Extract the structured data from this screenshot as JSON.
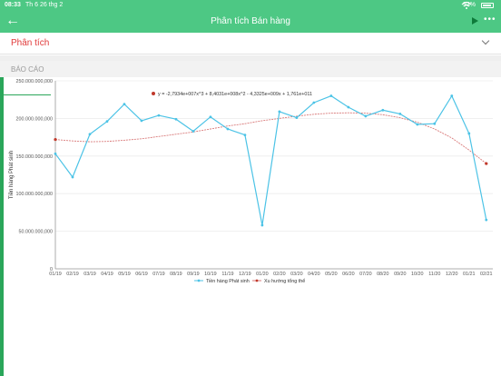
{
  "status_bar": {
    "time": "08:33",
    "date": "Th 6 26 thg 2",
    "battery": "93%"
  },
  "app_bar": {
    "title": "Phân tích Bán hàng"
  },
  "section": {
    "label": "Phân tích"
  },
  "report": {
    "label": "BÁO CÁO"
  },
  "colors": {
    "header": "#4dc884",
    "accent": "#2aa65a",
    "series": "#4cc3e6",
    "trend": "#d97a7a",
    "label_red": "#e03a3a"
  },
  "chart_data": {
    "type": "line",
    "ylabel": "Tiền hàng Phát sinh",
    "xlabel": "",
    "ylim": [
      0,
      250000000
    ],
    "y_ticks": [
      "0",
      "50.000.000,000",
      "100.000.000,000",
      "150.000.000,000",
      "200.000.000,000",
      "250.000.000,000"
    ],
    "categories": [
      "01/19",
      "02/19",
      "03/19",
      "04/19",
      "05/19",
      "06/19",
      "07/19",
      "08/19",
      "09/19",
      "10/19",
      "11/19",
      "12/19",
      "01/20",
      "02/20",
      "03/20",
      "04/20",
      "05/20",
      "06/20",
      "07/20",
      "08/20",
      "09/20",
      "10/20",
      "11/20",
      "12/20",
      "01/21",
      "02/21"
    ],
    "series": [
      {
        "name": "Tiền hàng Phát sinh",
        "values": [
          153000000,
          122000000,
          179000000,
          196000000,
          219000000,
          197000000,
          204000000,
          199000000,
          183000000,
          202000000,
          186000000,
          178000000,
          58000000,
          209000000,
          201000000,
          221000000,
          230000000,
          215000000,
          203000000,
          211000000,
          206000000,
          192000000,
          193000000,
          230000000,
          180000000,
          65000000
        ]
      },
      {
        "name": "Xu hướng tổng thể",
        "values": [
          172000000,
          170000000,
          169000000,
          169500000,
          171000000,
          173000000,
          176000000,
          179000000,
          182000000,
          186000000,
          190000000,
          193000000,
          197000000,
          200000000,
          203000000,
          205500000,
          207000000,
          207500000,
          207000000,
          205000000,
          201000000,
          195000000,
          186000000,
          174000000,
          158000000,
          140000000
        ]
      }
    ],
    "annotation": "y = -2,7934e+007x^3 + 8,4031e+008x^2 - 4,3325e+009x + 1,761e+011",
    "grid": true,
    "legend": "bottom"
  }
}
